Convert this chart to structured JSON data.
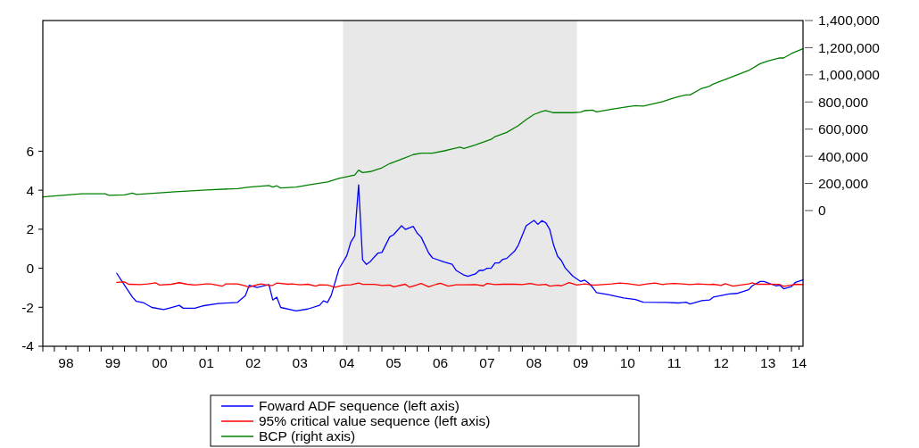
{
  "chart_data": {
    "type": "line",
    "legend": "bottom",
    "grid": false,
    "line_style": "solid",
    "xlim": [
      "1998-01",
      "2014-04"
    ],
    "xticks": [
      {
        "value": "1998-01",
        "label": null
      },
      {
        "value": "1998-04",
        "label": null
      },
      {
        "value": "1998-07",
        "label": "98"
      },
      {
        "value": "1998-10",
        "label": null
      },
      {
        "value": "1999-01",
        "label": null
      },
      {
        "value": "1999-04",
        "label": null
      },
      {
        "value": "1999-07",
        "label": "99"
      },
      {
        "value": "1999-10",
        "label": null
      },
      {
        "value": "2000-01",
        "label": null
      },
      {
        "value": "2000-04",
        "label": null
      },
      {
        "value": "2000-07",
        "label": "00"
      },
      {
        "value": "2000-10",
        "label": null
      },
      {
        "value": "2001-01",
        "label": null
      },
      {
        "value": "2001-04",
        "label": null
      },
      {
        "value": "2001-07",
        "label": "01"
      },
      {
        "value": "2001-10",
        "label": null
      },
      {
        "value": "2002-01",
        "label": null
      },
      {
        "value": "2002-04",
        "label": null
      },
      {
        "value": "2002-07",
        "label": "02"
      },
      {
        "value": "2002-10",
        "label": null
      },
      {
        "value": "2003-01",
        "label": null
      },
      {
        "value": "2003-04",
        "label": null
      },
      {
        "value": "2003-07",
        "label": "03"
      },
      {
        "value": "2003-10",
        "label": null
      },
      {
        "value": "2004-01",
        "label": null
      },
      {
        "value": "2004-04",
        "label": null
      },
      {
        "value": "2004-07",
        "label": "04"
      },
      {
        "value": "2004-10",
        "label": null
      },
      {
        "value": "2005-01",
        "label": null
      },
      {
        "value": "2005-04",
        "label": null
      },
      {
        "value": "2005-07",
        "label": "05"
      },
      {
        "value": "2005-10",
        "label": null
      },
      {
        "value": "2006-01",
        "label": null
      },
      {
        "value": "2006-04",
        "label": null
      },
      {
        "value": "2006-07",
        "label": "06"
      },
      {
        "value": "2006-10",
        "label": null
      },
      {
        "value": "2007-01",
        "label": null
      },
      {
        "value": "2007-04",
        "label": null
      },
      {
        "value": "2007-07",
        "label": "07"
      },
      {
        "value": "2007-10",
        "label": null
      },
      {
        "value": "2008-01",
        "label": null
      },
      {
        "value": "2008-04",
        "label": null
      },
      {
        "value": "2008-07",
        "label": "08"
      },
      {
        "value": "2008-10",
        "label": null
      },
      {
        "value": "2009-01",
        "label": null
      },
      {
        "value": "2009-04",
        "label": null
      },
      {
        "value": "2009-07",
        "label": "09"
      },
      {
        "value": "2009-10",
        "label": null
      },
      {
        "value": "2010-01",
        "label": null
      },
      {
        "value": "2010-04",
        "label": null
      },
      {
        "value": "2010-07",
        "label": "10"
      },
      {
        "value": "2010-10",
        "label": null
      },
      {
        "value": "2011-01",
        "label": null
      },
      {
        "value": "2011-04",
        "label": null
      },
      {
        "value": "2011-07",
        "label": "11"
      },
      {
        "value": "2011-10",
        "label": null
      },
      {
        "value": "2012-01",
        "label": null
      },
      {
        "value": "2012-04",
        "label": null
      },
      {
        "value": "2012-07",
        "label": "12"
      },
      {
        "value": "2012-10",
        "label": null
      },
      {
        "value": "2013-01",
        "label": null
      },
      {
        "value": "2013-04",
        "label": null
      },
      {
        "value": "2013-07",
        "label": "13"
      },
      {
        "value": "2013-10",
        "label": null
      },
      {
        "value": "2014-01",
        "label": null
      },
      {
        "value": "2014-03",
        "label": "14"
      }
    ],
    "ylim": [
      -4,
      12.7
    ],
    "yticks": [
      -4,
      -2,
      0,
      2,
      4,
      6
    ],
    "y2lim": [
      -1000000,
      1400000
    ],
    "y2ticks": [
      {
        "value": 0,
        "label": "0"
      },
      {
        "value": 200000,
        "label": "200,000"
      },
      {
        "value": 400000,
        "label": "400,000"
      },
      {
        "value": 600000,
        "label": "600,000"
      },
      {
        "value": 800000,
        "label": "800,000"
      },
      {
        "value": 1000000,
        "label": "1,000,000"
      },
      {
        "value": 1200000,
        "label": "1,200,000"
      },
      {
        "value": 1400000,
        "label": "1,400,000"
      }
    ],
    "bands": [
      {
        "axis": "x",
        "from": "2004-06",
        "to": "2009-06",
        "color": "#e8e8e8"
      }
    ],
    "series": [
      {
        "name": "Foward ADF sequence (left axis)",
        "color": "#0000ff",
        "x": [
          "1999-08",
          "1999-10",
          "1999-12",
          "2000-01",
          "2000-03",
          "2000-05",
          "2000-08",
          "2000-10",
          "2000-12",
          "2001-01",
          "2001-04",
          "2001-06",
          "2001-10",
          "2002-03",
          "2002-05",
          "2002-06",
          "2002-08",
          "2002-11",
          "2002-12",
          "2003-01",
          "2003-02",
          "2003-06",
          "2003-09",
          "2003-12",
          "2004-01",
          "2004-02",
          "2004-03",
          "2004-05",
          "2004-07",
          "2004-08",
          "2004-09",
          "2004-10",
          "2004-11",
          "2004-12",
          "2005-01",
          "2005-03",
          "2005-04",
          "2005-06",
          "2005-07",
          "2005-09",
          "2005-10",
          "2005-12",
          "2006-01",
          "2006-02",
          "2006-04",
          "2006-05",
          "2006-08",
          "2006-10",
          "2006-11",
          "2007-01",
          "2007-02",
          "2007-04",
          "2007-05",
          "2007-06",
          "2007-07",
          "2007-08",
          "2007-09",
          "2007-10",
          "2007-11",
          "2007-12",
          "2008-02",
          "2008-03",
          "2008-05",
          "2008-07",
          "2008-08",
          "2008-09",
          "2008-10",
          "2008-11",
          "2008-12",
          "2009-01",
          "2009-02",
          "2009-03",
          "2009-05",
          "2009-07",
          "2009-08",
          "2009-09",
          "2009-10",
          "2009-11",
          "2010-02",
          "2010-06",
          "2010-09",
          "2010-11",
          "2011-05",
          "2011-08",
          "2011-10",
          "2011-11",
          "2012-02",
          "2012-04",
          "2012-05",
          "2012-09",
          "2012-11",
          "2013-02",
          "2013-03",
          "2013-05",
          "2013-06",
          "2013-09",
          "2013-10",
          "2013-11",
          "2014-01",
          "2014-02",
          "2014-04"
        ],
        "values": [
          -0.26,
          -0.87,
          -1.48,
          -1.7,
          -1.78,
          -2.01,
          -2.12,
          -2.01,
          -1.9,
          -2.05,
          -2.05,
          -1.93,
          -1.81,
          -1.75,
          -1.4,
          -0.87,
          -0.99,
          -0.84,
          -1.63,
          -1.48,
          -2.01,
          -2.19,
          -2.09,
          -1.9,
          -1.67,
          -1.75,
          -1.4,
          -0.03,
          0.65,
          1.34,
          1.67,
          4.28,
          0.43,
          0.2,
          0.35,
          0.78,
          0.81,
          1.61,
          1.72,
          2.18,
          1.99,
          2.15,
          1.8,
          1.6,
          0.78,
          0.53,
          0.32,
          0.2,
          -0.11,
          -0.35,
          -0.41,
          -0.29,
          -0.11,
          -0.11,
          0,
          0,
          0.27,
          0.27,
          0.46,
          0.5,
          0.88,
          1.19,
          2.18,
          2.45,
          2.25,
          2.44,
          2.33,
          1.99,
          1.19,
          0.62,
          0.38,
          0.02,
          -0.41,
          -0.68,
          -0.61,
          -0.76,
          -0.97,
          -1.25,
          -1.35,
          -1.52,
          -1.6,
          -1.74,
          -1.75,
          -1.78,
          -1.74,
          -1.83,
          -1.66,
          -1.63,
          -1.48,
          -1.32,
          -1.29,
          -1.1,
          -0.9,
          -0.68,
          -0.68,
          -0.9,
          -0.87,
          -1.05,
          -0.94,
          -0.72,
          -0.6
        ]
      },
      {
        "name": "95% critical value sequence (left axis)",
        "color": "#ff0000",
        "x": [
          "1999-08",
          "1999-10",
          "1999-11",
          "2000-02",
          "2000-04",
          "2000-06",
          "2000-07",
          "2000-10",
          "2000-12",
          "2001-02",
          "2001-04",
          "2001-07",
          "2001-08",
          "2001-11",
          "2001-12",
          "2002-03",
          "2002-05",
          "2002-06",
          "2002-07",
          "2002-09",
          "2002-11",
          "2002-12",
          "2003-01",
          "2003-04",
          "2003-05",
          "2003-07",
          "2003-09",
          "2003-11",
          "2003-12",
          "2004-02",
          "2004-04",
          "2004-06",
          "2004-08",
          "2004-10",
          "2004-11",
          "2005-02",
          "2005-04",
          "2005-06",
          "2005-07",
          "2005-10",
          "2005-11",
          "2006-01",
          "2006-02",
          "2006-04",
          "2006-06",
          "2006-07",
          "2006-09",
          "2006-11",
          "2007-01",
          "2007-04",
          "2007-06",
          "2007-07",
          "2007-09",
          "2007-11",
          "2008-02",
          "2008-04",
          "2008-06",
          "2008-08",
          "2008-10",
          "2008-11",
          "2009-01",
          "2009-02",
          "2009-04",
          "2009-06",
          "2009-08",
          "2009-10",
          "2009-11",
          "2010-03",
          "2010-05",
          "2010-07",
          "2010-10",
          "2010-12",
          "2011-02",
          "2011-04",
          "2011-05",
          "2011-07",
          "2011-09",
          "2011-11",
          "2012-01",
          "2012-04",
          "2012-05",
          "2012-07",
          "2012-08",
          "2012-10",
          "2012-12",
          "2013-02",
          "2013-03",
          "2013-04",
          "2013-07",
          "2013-10",
          "2013-11",
          "2014-01",
          "2014-02",
          "2014-04"
        ],
        "values": [
          -0.72,
          -0.7,
          -0.82,
          -0.84,
          -0.8,
          -0.75,
          -0.86,
          -0.82,
          -0.74,
          -0.82,
          -0.86,
          -0.8,
          -0.8,
          -0.92,
          -0.8,
          -0.8,
          -0.91,
          -0.98,
          -0.9,
          -0.8,
          -0.88,
          -0.88,
          -0.76,
          -0.82,
          -0.8,
          -0.85,
          -0.82,
          -0.92,
          -0.85,
          -0.86,
          -0.98,
          -0.87,
          -0.85,
          -0.76,
          -0.83,
          -0.83,
          -0.88,
          -0.86,
          -0.95,
          -0.82,
          -0.97,
          -0.85,
          -0.78,
          -0.95,
          -0.82,
          -0.77,
          -0.92,
          -0.85,
          -0.85,
          -0.84,
          -0.9,
          -0.78,
          -0.84,
          -0.82,
          -0.82,
          -0.84,
          -0.78,
          -0.86,
          -0.83,
          -0.92,
          -0.87,
          -0.9,
          -0.73,
          -0.86,
          -0.8,
          -0.86,
          -0.86,
          -0.8,
          -0.76,
          -0.79,
          -0.87,
          -0.8,
          -0.76,
          -0.84,
          -0.8,
          -0.78,
          -0.8,
          -0.84,
          -0.8,
          -0.84,
          -0.82,
          -0.88,
          -0.79,
          -0.92,
          -0.86,
          -0.8,
          -0.75,
          -0.82,
          -0.82,
          -0.83,
          -0.93,
          -0.86,
          -0.82,
          -0.84
        ]
      },
      {
        "name": "BCP (right axis)",
        "color": "#008000",
        "axis": "y2",
        "x": [
          "1998-01",
          "1998-11",
          "1999-05",
          "1999-06",
          "1999-10",
          "1999-12",
          "2000-01",
          "2000-11",
          "2001-07",
          "2002-03",
          "2002-06",
          "2002-11",
          "2002-12",
          "2003-01",
          "2003-02",
          "2003-06",
          "2003-10",
          "2004-02",
          "2004-05",
          "2004-09",
          "2004-10",
          "2004-11",
          "2005-01",
          "2005-04",
          "2005-06",
          "2005-09",
          "2005-12",
          "2006-02",
          "2006-05",
          "2006-08",
          "2006-12",
          "2007-01",
          "2007-04",
          "2007-08",
          "2007-09",
          "2007-12",
          "2008-03",
          "2008-05",
          "2008-07",
          "2008-09",
          "2008-10",
          "2008-12",
          "2009-02",
          "2009-05",
          "2009-07",
          "2009-08",
          "2009-10",
          "2009-11",
          "2010-03",
          "2010-07",
          "2010-09",
          "2010-11",
          "2011-04",
          "2011-07",
          "2011-08",
          "2011-10",
          "2011-11",
          "2012-02",
          "2012-04",
          "2012-05",
          "2012-09",
          "2013-02",
          "2013-05",
          "2013-07",
          "2013-10",
          "2013-11",
          "2014-01",
          "2014-04"
        ],
        "values": [
          100000,
          123000,
          123000,
          112000,
          116000,
          129000,
          118000,
          138000,
          151000,
          162000,
          173000,
          184000,
          173000,
          182000,
          166000,
          173000,
          193000,
          210000,
          237000,
          261000,
          298000,
          280000,
          287000,
          315000,
          346000,
          379000,
          412000,
          423000,
          423000,
          440000,
          467000,
          458000,
          484000,
          524000,
          545000,
          576000,
          626000,
          670000,
          708000,
          730000,
          736000,
          721000,
          721000,
          721000,
          725000,
          736000,
          740000,
          727000,
          747000,
          765000,
          773000,
          769000,
          802000,
          830000,
          839000,
          852000,
          852000,
          900000,
          916000,
          933000,
          977000,
          1032000,
          1082000,
          1102000,
          1124000,
          1124000,
          1157000,
          1192000
        ]
      }
    ]
  }
}
